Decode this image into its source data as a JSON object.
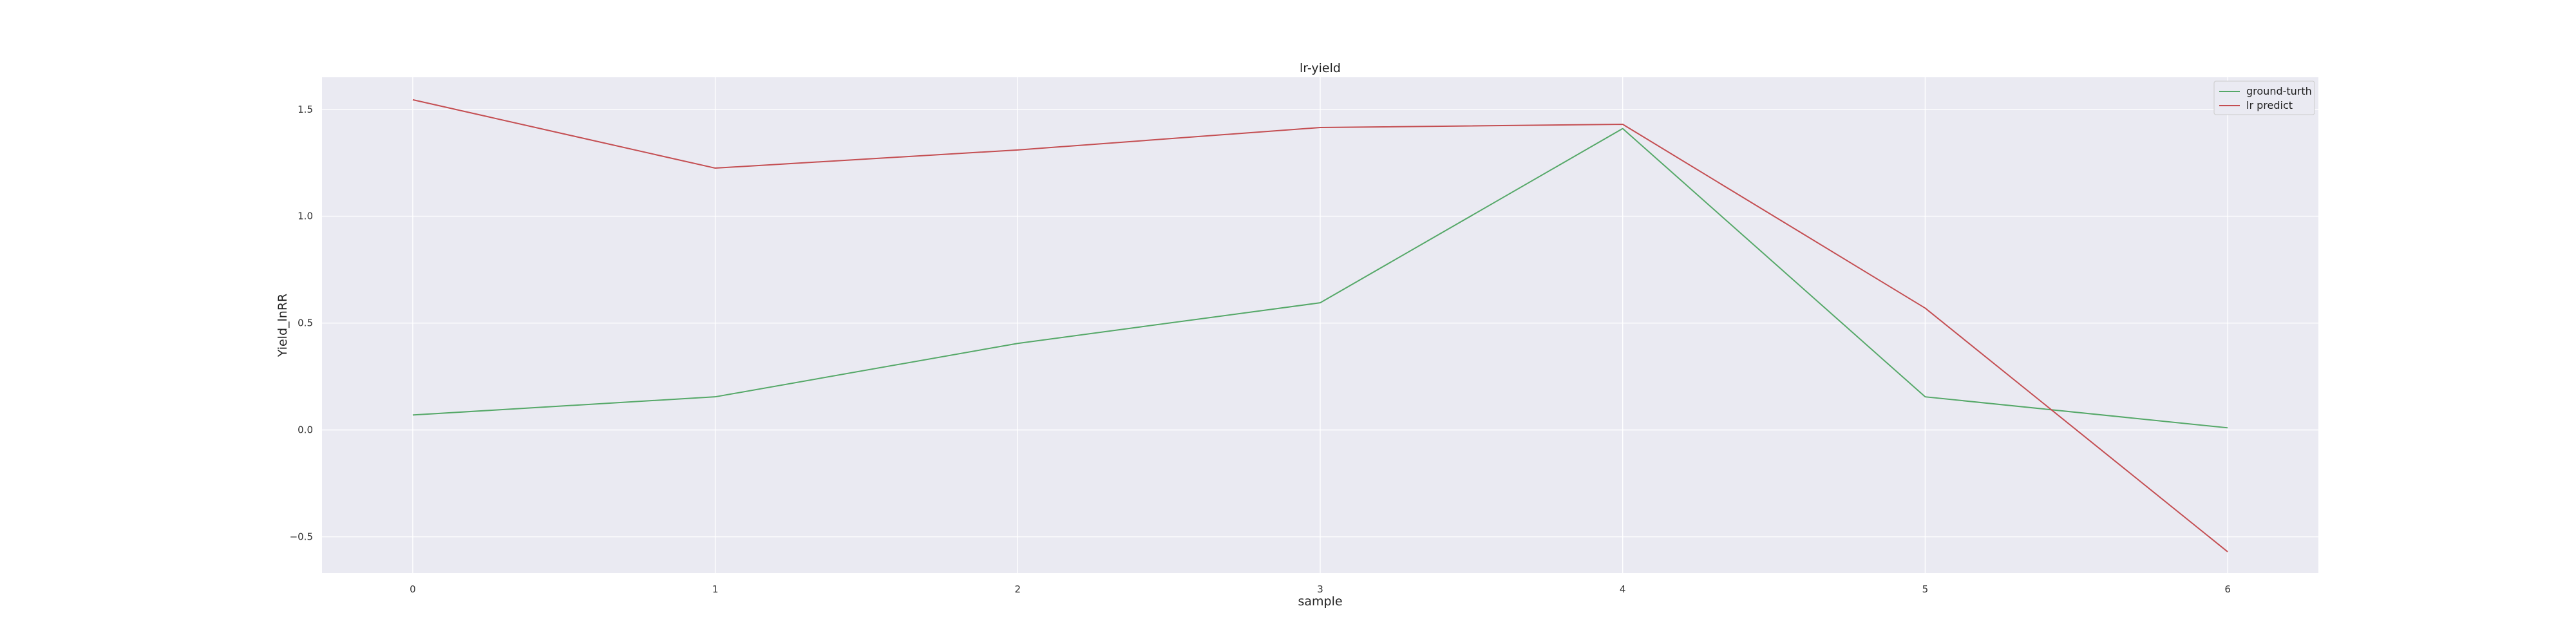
{
  "chart_data": {
    "type": "line",
    "title": "lr-yield",
    "xlabel": "sample",
    "ylabel": "Yield_lnRR",
    "x": [
      0,
      1,
      2,
      3,
      4,
      5,
      6
    ],
    "xlim": [
      -0.3,
      6.3
    ],
    "ylim": [
      -0.67,
      1.65
    ],
    "xticks": [
      "0",
      "1",
      "2",
      "3",
      "4",
      "5",
      "6"
    ],
    "yticks": [
      {
        "value": -0.5,
        "label": "−0.5"
      },
      {
        "value": 0.0,
        "label": "0.0"
      },
      {
        "value": 0.5,
        "label": "0.5"
      },
      {
        "value": 1.0,
        "label": "1.0"
      },
      {
        "value": 1.5,
        "label": "1.5"
      }
    ],
    "grid": true,
    "legend_position": "top-right",
    "series": [
      {
        "name": "ground-turth",
        "color": "#55a868",
        "values": [
          0.07,
          0.155,
          0.405,
          0.595,
          1.41,
          0.155,
          0.01
        ]
      },
      {
        "name": "lr predict",
        "color": "#c44e52",
        "values": [
          1.545,
          1.225,
          1.31,
          1.415,
          1.43,
          0.57,
          -0.57
        ]
      }
    ]
  }
}
